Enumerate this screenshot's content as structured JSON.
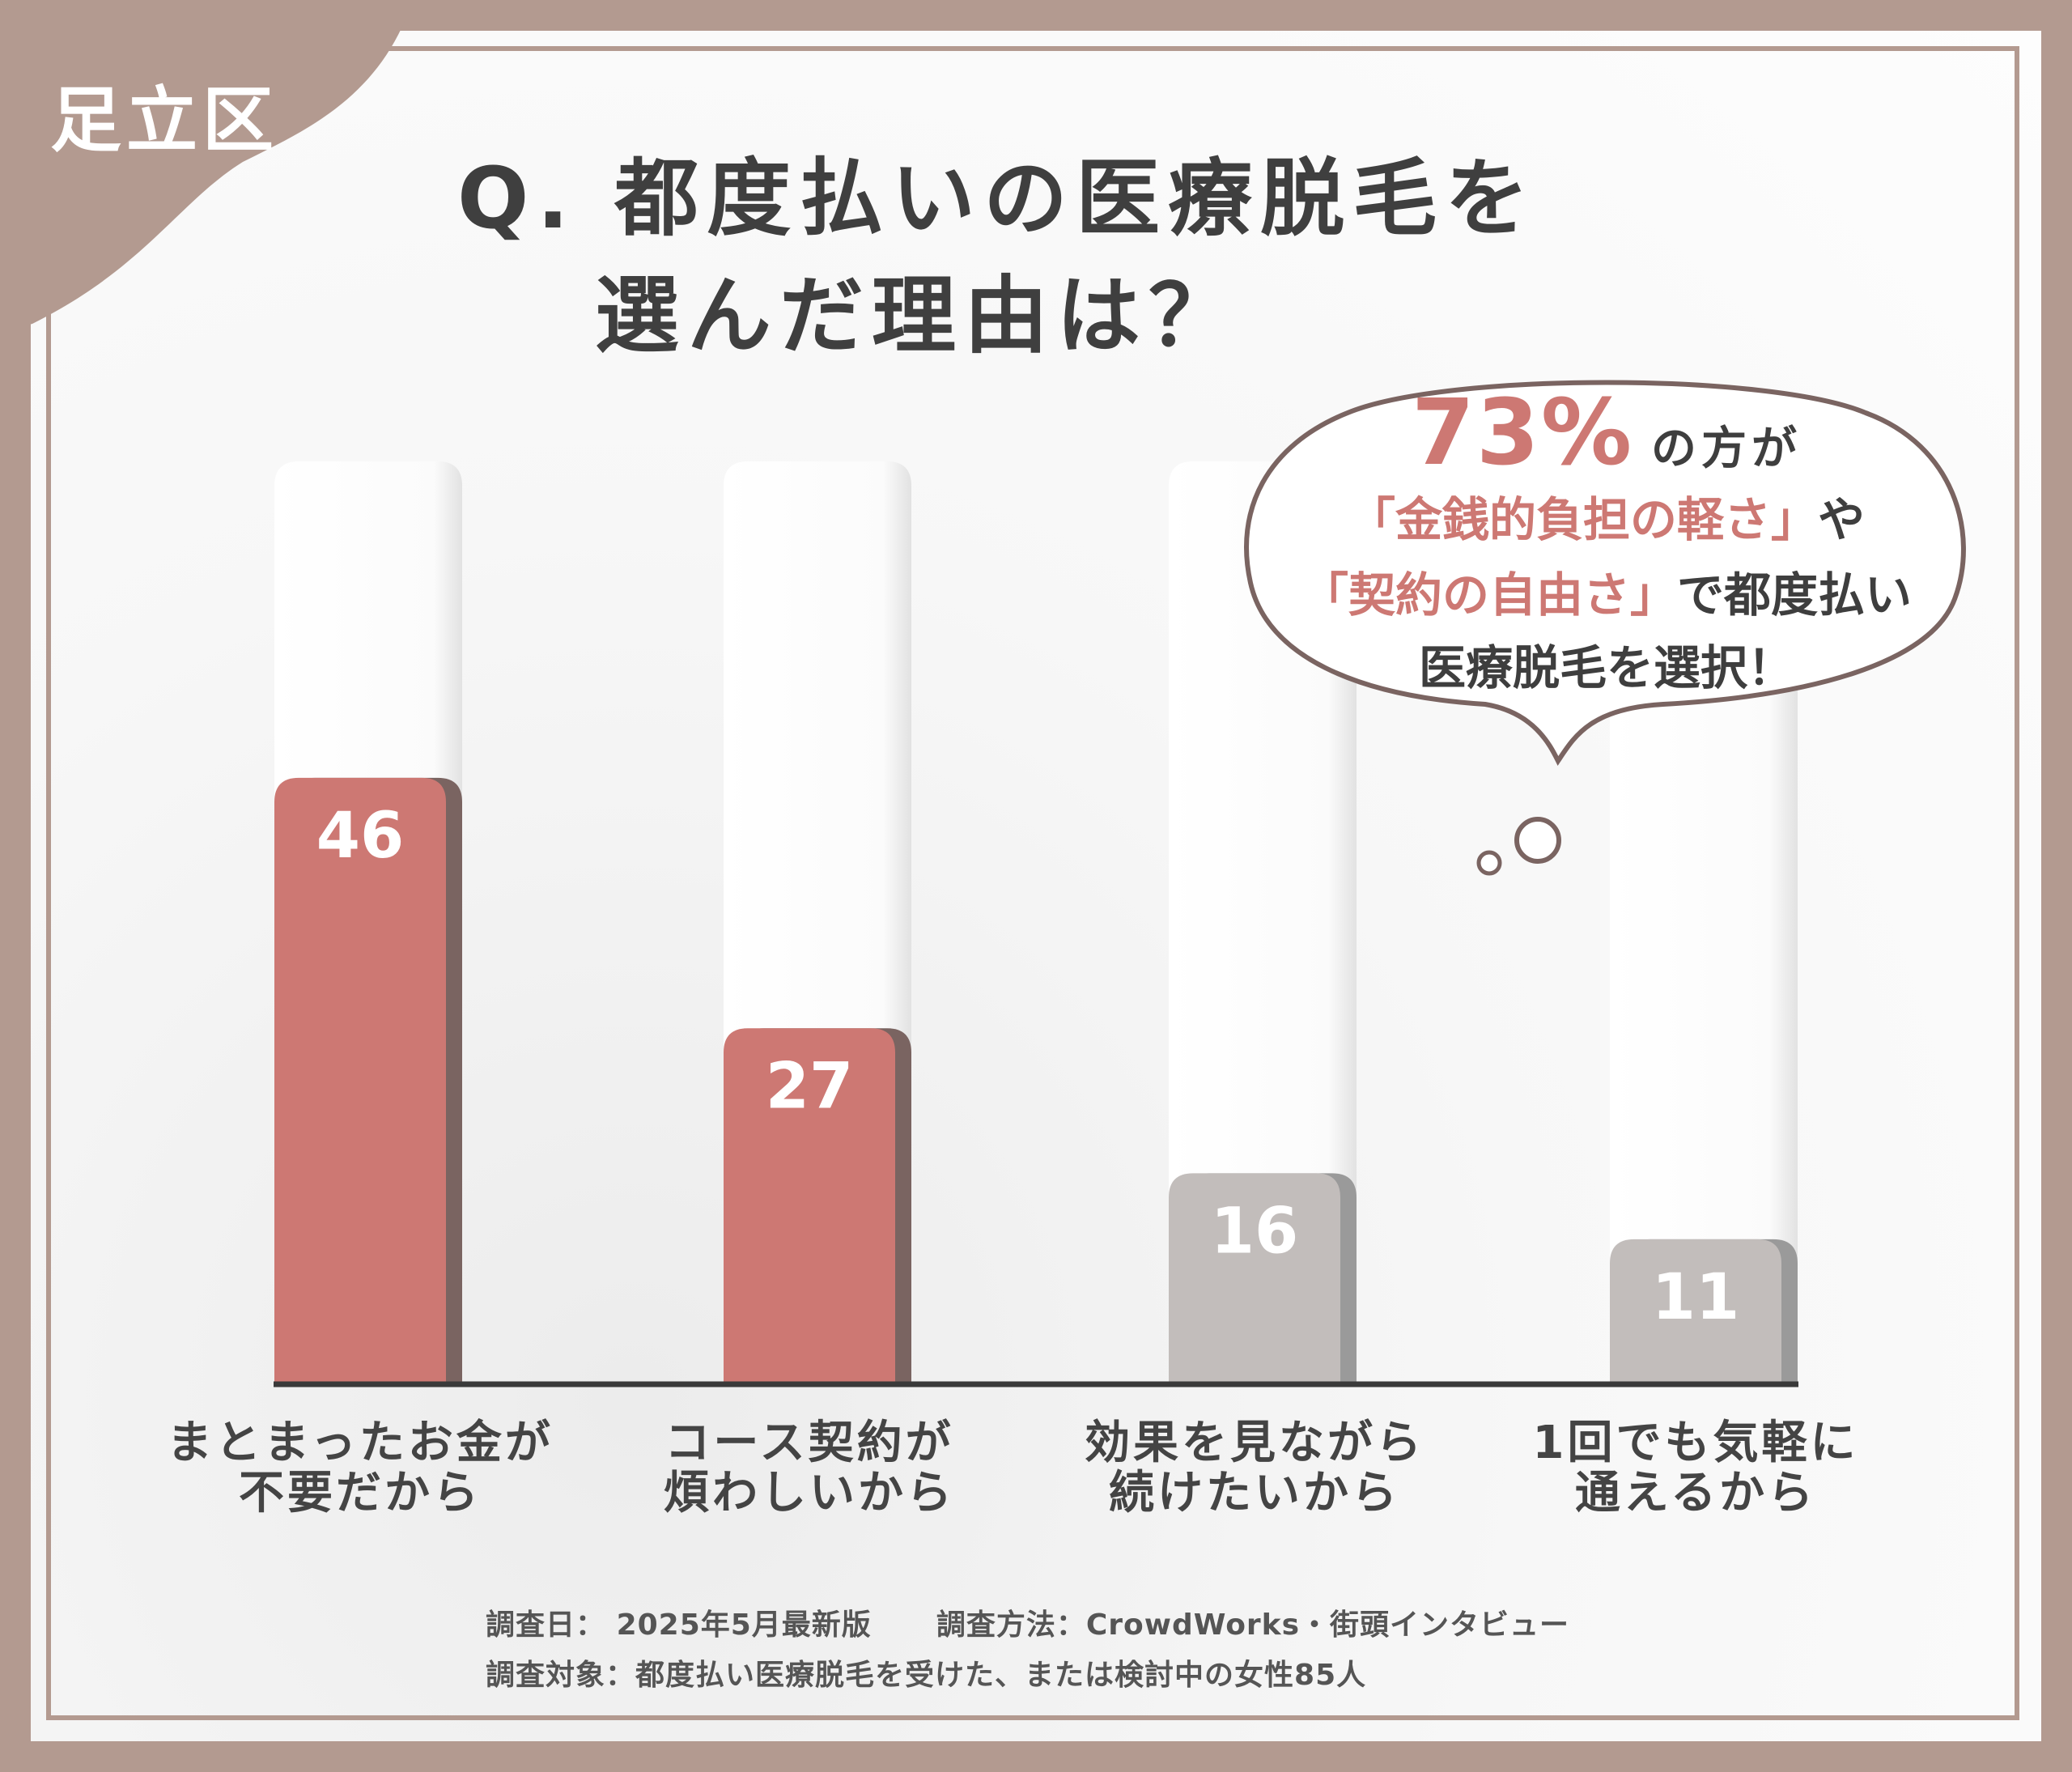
{
  "region_label": "足立区",
  "title": {
    "line1": "Q. 都度払いの医療脱毛を",
    "line2": "選んだ理由は？"
  },
  "callout": {
    "percent": "73%",
    "after_percent": "の方が",
    "line2_highlight": "「金銭的負担の軽さ」",
    "line2_tail": "や",
    "line3_highlight": "「契約の自由さ」",
    "line3_tail": "で都度払い",
    "line4": "医療脱毛を選択！"
  },
  "chart_data": {
    "type": "bar",
    "categories": [
      "まとまったお金が不要だから",
      "コース契約が煩わしいから",
      "効果を見ながら続けたいから",
      "1回でも気軽に通えるから"
    ],
    "category_lines": [
      [
        "まとまったお金が",
        "不要だから"
      ],
      [
        "コース契約が",
        "煩わしいから"
      ],
      [
        "効果を見ながら",
        "続けたいから"
      ],
      [
        "1回でも気軽に",
        "通えるから"
      ]
    ],
    "values": [
      46,
      27,
      16,
      11
    ],
    "highlighted": [
      true,
      true,
      false,
      false
    ],
    "ylim": [
      0,
      70
    ],
    "grid": false,
    "colors": {
      "highlight": "#cd7873",
      "highlight_shadow": "#7a6461",
      "muted": "#c2bdbb",
      "muted_shadow": "#9a9a9a",
      "axis": "#3a3a3a"
    }
  },
  "footer": {
    "date_label": "調査日：",
    "date_value": "2025年5月最新版",
    "method_label": "調査方法：",
    "method_value": "CrowdWorks・街頭インタビュー",
    "target_label": "調査対象：",
    "target_value": "都度払い医療脱毛を受けた、または検討中の女性85人"
  },
  "colors": {
    "background": "#b39a90",
    "accent": "#cd7873",
    "title_text": "#3f3f3f"
  }
}
